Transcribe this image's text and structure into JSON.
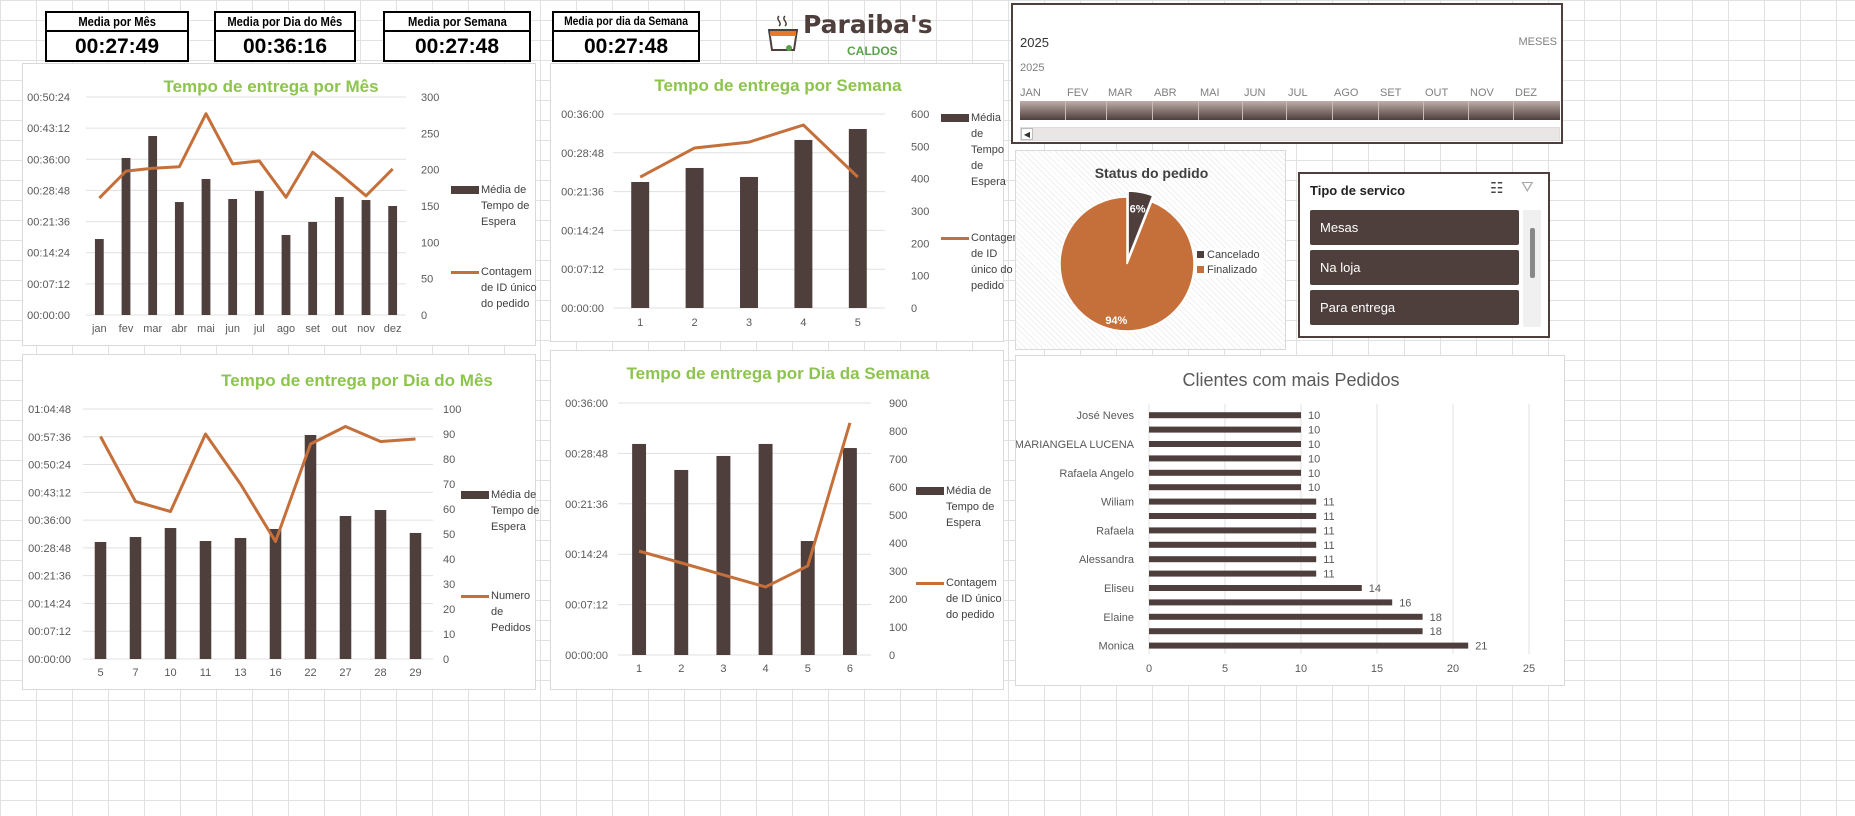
{
  "kpis": [
    {
      "title": "Media por Mês",
      "value": "00:27:49"
    },
    {
      "title": "Media por Dia do Mês",
      "value": "00:36:16"
    },
    {
      "title": "Media por Semana",
      "value": "00:27:48"
    },
    {
      "title": "Media por dia da Semana",
      "value": "00:27:48"
    }
  ],
  "logo": {
    "text": "Paraiba's",
    "subtitle": "CALDOS"
  },
  "colors": {
    "bar": "#4e3f3c",
    "line": "#c5703a",
    "title": "#8dc44e"
  },
  "timeline": {
    "selected_label": "2025",
    "level": "MESES",
    "year": "2025",
    "months": [
      "JAN",
      "FEV",
      "MAR",
      "ABR",
      "MAI",
      "JUN",
      "JUL",
      "AGO",
      "SET",
      "OUT",
      "NOV",
      "DEZ"
    ]
  },
  "status_chart": {
    "title": "Status do pedido",
    "type": "pie",
    "slices": [
      {
        "name": "Cancelado",
        "value": 6,
        "label": "6%"
      },
      {
        "name": "Finalizado",
        "value": 94,
        "label": "94%"
      }
    ]
  },
  "slicer": {
    "title": "Tipo de servico",
    "items": [
      "Mesas",
      "Na loja",
      "Para entrega"
    ]
  },
  "chart_data": [
    {
      "type": "bar+line",
      "title": "Tempo de entrega por Mês",
      "categories": [
        "jan",
        "fev",
        "mar",
        "abr",
        "mai",
        "jun",
        "jul",
        "ago",
        "set",
        "out",
        "nov",
        "dez"
      ],
      "left_ticks": [
        "00:00:00",
        "00:07:12",
        "00:14:24",
        "00:21:36",
        "00:28:48",
        "00:36:00",
        "00:43:12",
        "00:50:24"
      ],
      "right_ticks": [
        "0",
        "50",
        "100",
        "150",
        "200",
        "250",
        "300"
      ],
      "ylim_right": [
        0,
        300
      ],
      "series": [
        {
          "name": "Média de Tempo de Espera",
          "type": "bar",
          "axis": "left",
          "values": [
            "00:17:34",
            "00:36:18",
            "00:41:23",
            "00:26:07",
            "00:31:27",
            "00:26:49",
            "00:28:40",
            "00:18:30",
            "00:21:30",
            "00:27:17",
            "00:26:35",
            "00:25:12"
          ]
        },
        {
          "name": "Contagem de ID único do pedido",
          "type": "line",
          "axis": "right",
          "values": [
            161,
            198,
            202,
            204,
            277,
            208,
            212,
            162,
            224,
            195,
            164,
            201
          ]
        }
      ]
    },
    {
      "type": "bar+line",
      "title": "Tempo de entrega por Semana",
      "categories": [
        "1",
        "2",
        "3",
        "4",
        "5"
      ],
      "left_ticks": [
        "00:00:00",
        "00:07:12",
        "00:14:24",
        "00:21:36",
        "00:28:48",
        "00:36:00"
      ],
      "right_ticks": [
        "0",
        "100",
        "200",
        "300",
        "400",
        "500",
        "600"
      ],
      "ylim_right": [
        0,
        600
      ],
      "series": [
        {
          "name": "Média de Tempo de Espera",
          "type": "bar",
          "axis": "left",
          "values": [
            "00:23:23",
            "00:25:59",
            "00:24:19",
            "00:31:11",
            "00:33:13"
          ]
        },
        {
          "name": "Contagem de ID único do pedido",
          "type": "line",
          "axis": "right",
          "values": [
            405,
            495,
            513,
            566,
            405
          ]
        }
      ]
    },
    {
      "type": "bar+line",
      "title": "Tempo de entrega por Dia do Mês",
      "categories": [
        "5",
        "7",
        "10",
        "11",
        "13",
        "16",
        "22",
        "27",
        "28",
        "29"
      ],
      "left_ticks": [
        "00:00:00",
        "00:07:12",
        "00:14:24",
        "00:21:36",
        "00:28:48",
        "00:36:00",
        "00:43:12",
        "00:50:24",
        "00:57:36",
        "01:04:48"
      ],
      "right_ticks": [
        "0",
        "10",
        "20",
        "30",
        "40",
        "50",
        "60",
        "70",
        "80",
        "90",
        "100"
      ],
      "ylim_right": [
        0,
        100
      ],
      "series": [
        {
          "name": "Média de Tempo de Espera",
          "type": "bar",
          "axis": "left",
          "values": [
            "00:30:20",
            "00:31:37",
            "00:33:57",
            "00:30:35",
            "00:31:22",
            "00:33:42",
            "00:58:04",
            "00:37:04",
            "00:38:37",
            "00:32:40"
          ]
        },
        {
          "name": "Numero de Pedidos",
          "type": "line",
          "axis": "right",
          "values": [
            89,
            63,
            59,
            90,
            70,
            47,
            86,
            93,
            87,
            88
          ]
        }
      ]
    },
    {
      "type": "bar+line",
      "title": "Tempo de entrega por Dia da Semana",
      "categories": [
        "1",
        "2",
        "3",
        "4",
        "5",
        "6"
      ],
      "left_ticks": [
        "00:00:00",
        "00:07:12",
        "00:14:24",
        "00:21:36",
        "00:28:48",
        "00:36:00"
      ],
      "right_ticks": [
        "0",
        "100",
        "200",
        "300",
        "400",
        "500",
        "600",
        "700",
        "800",
        "900"
      ],
      "ylim_right": [
        0,
        900
      ],
      "series": [
        {
          "name": "Média de Tempo de Espera",
          "type": "bar",
          "axis": "left",
          "values": [
            "00:30:09",
            "00:26:26",
            "00:28:26",
            "00:30:09",
            "00:16:17",
            "00:29:34"
          ]
        },
        {
          "name": "Contagem de ID único do pedido",
          "type": "line",
          "axis": "right",
          "values": [
            371,
            329,
            286,
            243,
            318,
            829
          ]
        }
      ]
    },
    {
      "type": "bar",
      "orientation": "horizontal",
      "title": "Clientes com mais Pedidos",
      "categories": [
        "José Neves",
        "",
        "MARIANGELA LUCENA",
        "",
        "Rafaela Angelo",
        "",
        "Wiliam",
        "",
        "Rafaela",
        "",
        "Alessandra",
        "",
        "Eliseu",
        "",
        "Elaine",
        "",
        "Monica"
      ],
      "values": [
        10,
        10,
        10,
        10,
        10,
        10,
        11,
        11,
        11,
        11,
        11,
        11,
        14,
        16,
        18,
        18,
        21
      ],
      "x_ticks": [
        "0",
        "5",
        "10",
        "15",
        "20",
        "25"
      ],
      "xlim": [
        0,
        25
      ]
    }
  ]
}
